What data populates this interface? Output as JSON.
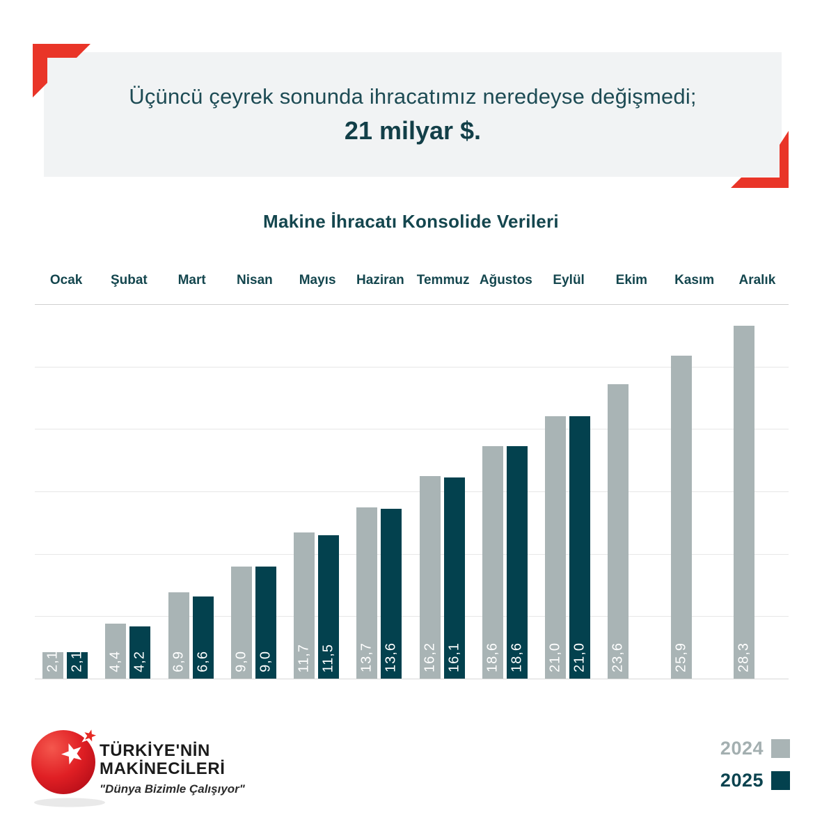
{
  "banner": {
    "line1": "Üçüncü çeyrek sonunda ihracatımız neredeyse değişmedi;",
    "line2": "21 milyar $."
  },
  "chart_data": {
    "type": "bar",
    "title": "Makine İhracatı Konsolide Verileri",
    "categories": [
      "Ocak",
      "Şubat",
      "Mart",
      "Nisan",
      "Mayıs",
      "Haziran",
      "Temmuz",
      "Ağustos",
      "Eylül",
      "Ekim",
      "Kasım",
      "Aralık"
    ],
    "series": [
      {
        "name": "2024",
        "color": "#a9b4b5",
        "values": [
          2.1,
          4.4,
          6.9,
          9.0,
          11.7,
          13.7,
          16.2,
          18.6,
          21.0,
          23.6,
          25.9,
          28.3
        ],
        "labels": [
          "2,1",
          "4,4",
          "6,9",
          "9,0",
          "11,7",
          "13,7",
          "16,2",
          "18,6",
          "21,0",
          "23,6",
          "25,9",
          "28,3"
        ]
      },
      {
        "name": "2025",
        "color": "#03414e",
        "values": [
          2.1,
          4.2,
          6.6,
          9.0,
          11.5,
          13.6,
          16.1,
          18.6,
          21.0,
          null,
          null,
          null
        ],
        "labels": [
          "2,1",
          "4,2",
          "6,6",
          "9,0",
          "11,5",
          "13,6",
          "16,1",
          "18,6",
          "21,0",
          null,
          null,
          null
        ]
      }
    ],
    "ylim": [
      0,
      30
    ],
    "grid_step": 5,
    "grid": "horizontal",
    "legend_position": "bottom-right"
  },
  "logo": {
    "line1": "TÜRKİYE'NİN",
    "line2": "MAKİNECİLERİ",
    "slogan": "\"Dünya Bizimle Çalışıyor\""
  },
  "colors": {
    "accent_red": "#e93528",
    "teal_dark": "#03414e",
    "teal_text": "#14464e",
    "gray_bar": "#a9b4b5",
    "banner_bg": "#f1f3f4"
  }
}
